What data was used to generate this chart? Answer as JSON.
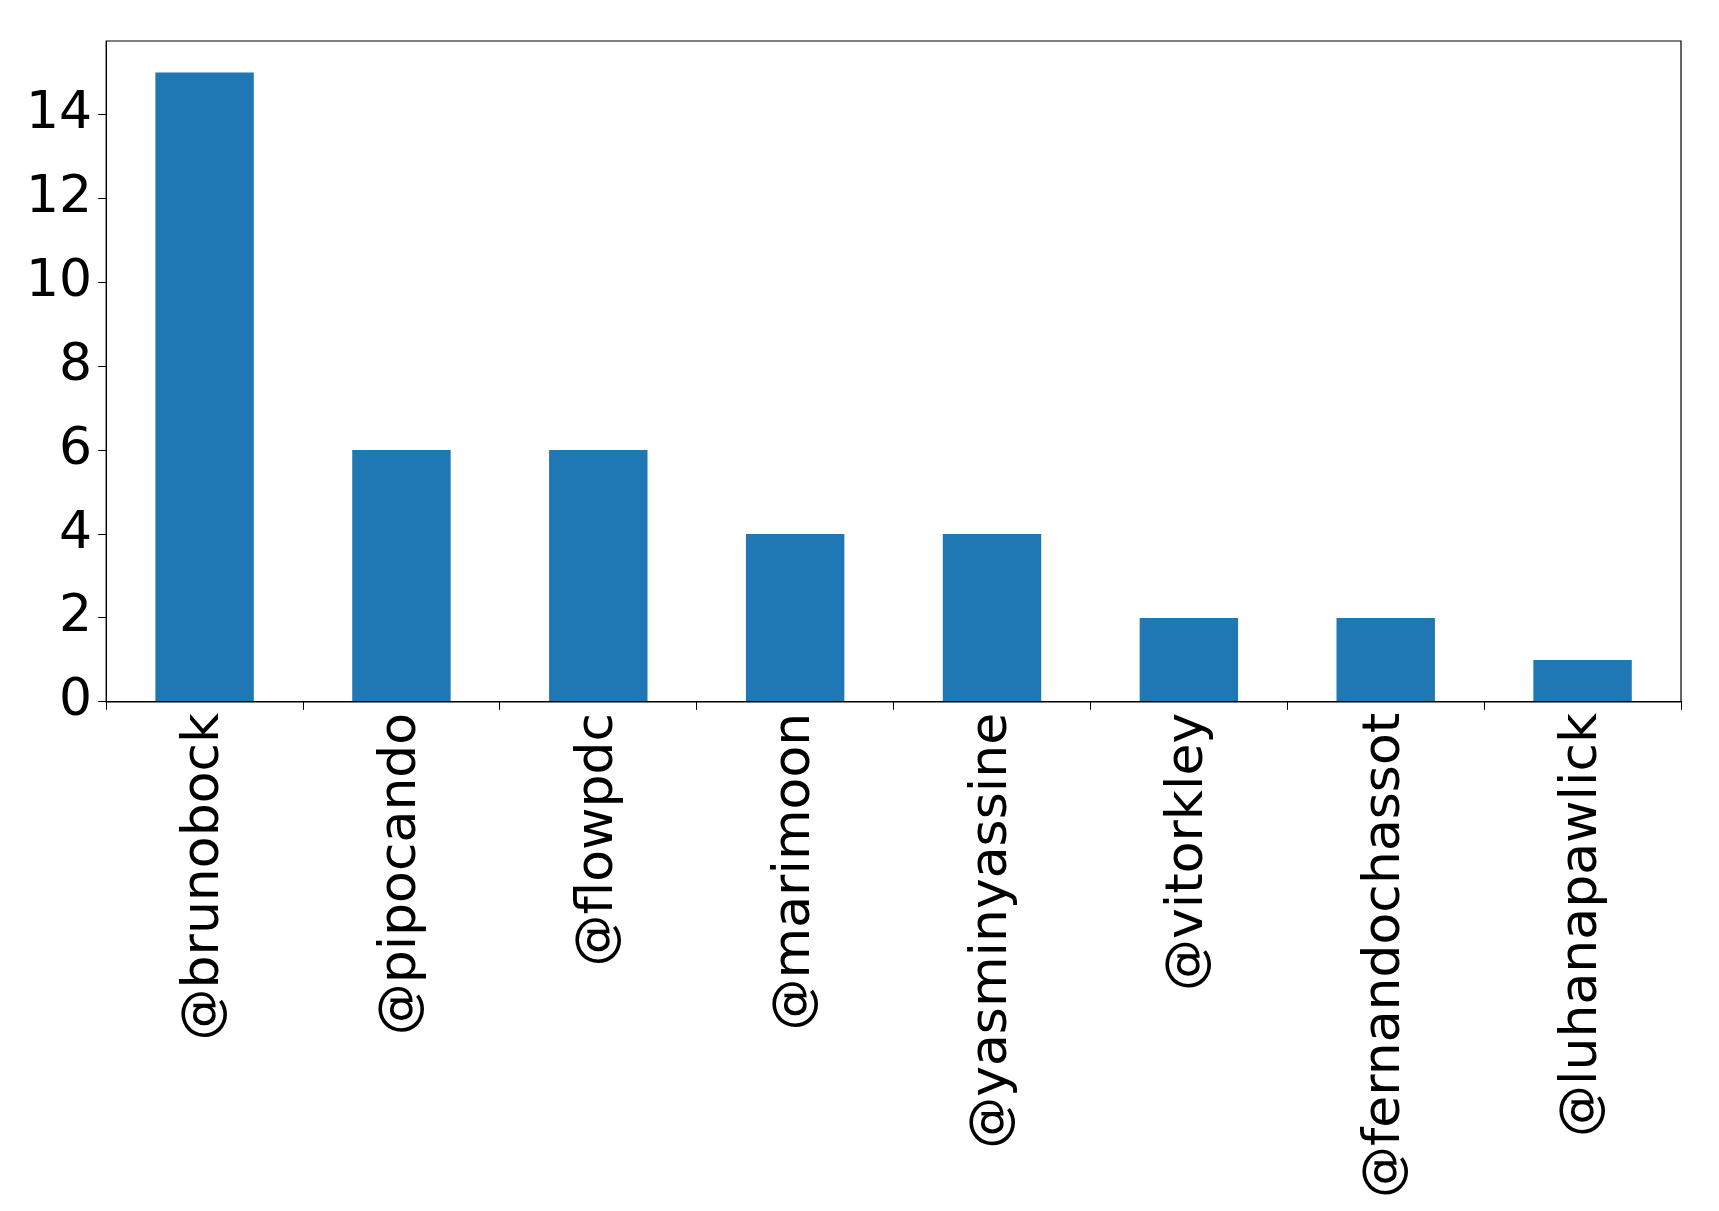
{
  "chart_data": {
    "type": "bar",
    "categories": [
      "@brunobock",
      "@pipocando",
      "@flowpdc",
      "@marimoon",
      "@yasminyassine",
      "@vitorkley",
      "@fernandochassot",
      "@luhanapawlick"
    ],
    "values": [
      15,
      6,
      6,
      4,
      4,
      2,
      2,
      1
    ],
    "color": "#1f77b4",
    "ylim": [
      0,
      15.75
    ],
    "yticks": [
      0,
      2,
      4,
      6,
      8,
      10,
      12,
      14
    ],
    "grid": false,
    "legend": false
  }
}
